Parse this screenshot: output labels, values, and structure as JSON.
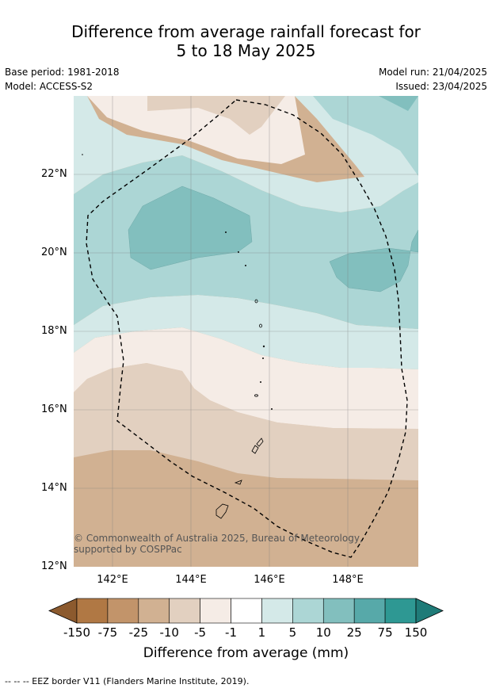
{
  "title_line1": "Difference from average rainfall forecast for",
  "title_line2": "5 to 18 May 2025",
  "base_period": "Base period: 1981-2018",
  "model": "Model: ACCESS-S2",
  "model_run": "Model run: 21/04/2025",
  "issued": "Issued: 23/04/2025",
  "lat_labels": [
    "22°N",
    "20°N",
    "18°N",
    "16°N",
    "14°N",
    "12°N"
  ],
  "lon_labels": [
    "142°E",
    "144°E",
    "146°E",
    "148°E"
  ],
  "credit": "© Commonwealth of Australia 2025, Bureau of Meteorology, supported by COSPPac",
  "colorbar": {
    "title": "Difference from average (mm)",
    "tick_labels": [
      "-150",
      "-75",
      "-25",
      "-10",
      "-5",
      "-1",
      "1",
      "5",
      "10",
      "25",
      "75",
      "150"
    ],
    "colors": [
      "#8c5a2e",
      "#b07844",
      "#c2946a",
      "#d1b192",
      "#e2d0c0",
      "#f5ece6",
      "#ffffff",
      "#d4e9e8",
      "#acd6d5",
      "#82bfbe",
      "#57a9a9",
      "#2e9893",
      "#1f7b78"
    ]
  },
  "footer": "--  --  -- EEZ border V11 (Flanders Marine Institute, 2019)."
}
